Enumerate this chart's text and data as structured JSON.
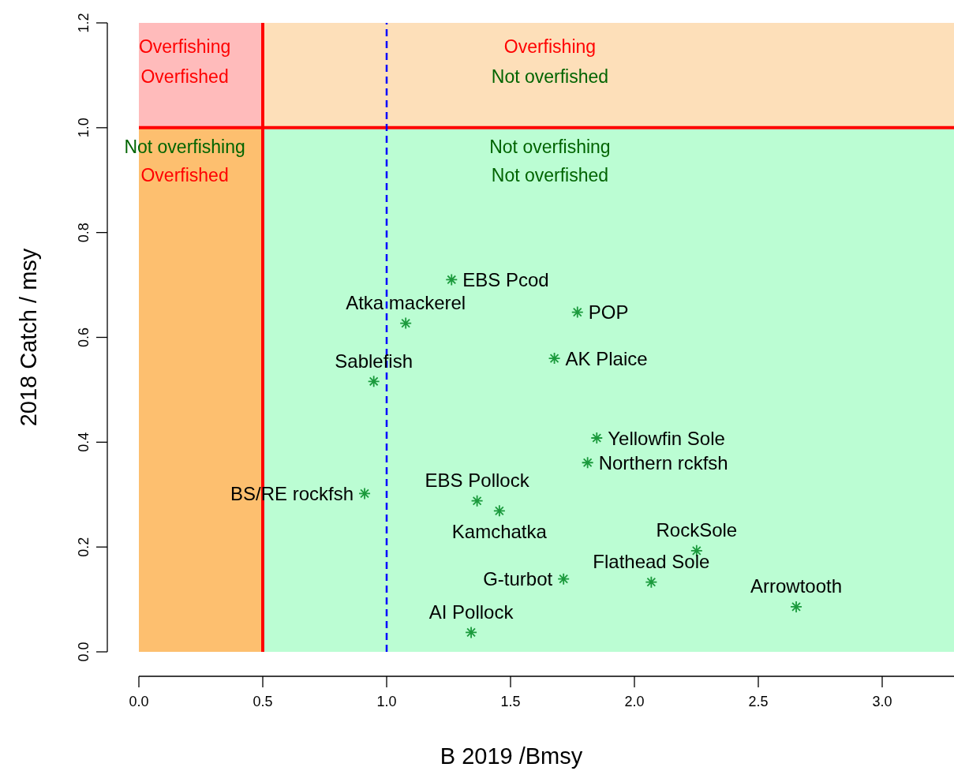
{
  "chart_data": {
    "type": "scatter",
    "xlabel": "B 2019 /Bmsy",
    "ylabel": "2018 Catch / msy",
    "x": [
      1.262,
      1.077,
      0.948,
      1.77,
      1.677,
      1.848,
      1.811,
      0.911,
      1.365,
      1.455,
      2.251,
      2.068,
      1.714,
      1.341,
      2.653
    ],
    "series": [
      {
        "color": "#1a9a3c",
        "values": [
          0.71,
          0.627,
          0.516,
          0.648,
          0.56,
          0.408,
          0.361,
          0.302,
          0.288,
          0.269,
          0.193,
          0.133,
          0.139,
          0.037,
          0.086
        ],
        "value_labels": [
          "EBS Pcod",
          "Atka mackerel",
          "Sablefish",
          "POP",
          "AK Plaice",
          "Yellowfin Sole",
          "Northern rckfsh",
          "BS/RE rockfsh",
          "EBS Pollock",
          "Kamchatka",
          "RockSole",
          "Flathead Sole",
          "G-turbot",
          "AI Pollock",
          "Arrowtooth"
        ]
      }
    ],
    "marker": "cross",
    "xlim": [
      0,
      3.29
    ],
    "xticks": [
      {
        "value": 0,
        "label": "0.0"
      },
      {
        "value": 0.5,
        "label": "0.5"
      },
      {
        "value": 1,
        "label": "1.0"
      },
      {
        "value": 1.5,
        "label": "1.5"
      },
      {
        "value": 2,
        "label": "2.0"
      },
      {
        "value": 2.5,
        "label": "2.5"
      },
      {
        "value": 3,
        "label": "3.0"
      }
    ],
    "ylim": [
      0,
      1.2
    ],
    "yticks": [
      {
        "value": 0,
        "label": "0.0"
      },
      {
        "value": 0.2,
        "label": "0.2"
      },
      {
        "value": 0.4,
        "label": "0.4"
      },
      {
        "value": 0.6,
        "label": "0.6"
      },
      {
        "value": 0.8,
        "label": "0.8"
      },
      {
        "value": 1,
        "label": "1.0"
      },
      {
        "value": 1.2,
        "label": "1.2"
      }
    ],
    "bands": [
      {
        "axis": "x",
        "from": 0,
        "to": 0.5,
        "color": "#fdbf6f"
      },
      {
        "axis": "y",
        "from": 1,
        "to": 1.2,
        "color": "#fddfb9"
      }
    ],
    "ref_lines": [
      {
        "axis": "x",
        "value": 0.5,
        "color": "#ff0000",
        "line_style": "solid"
      },
      {
        "axis": "y",
        "value": 1,
        "color": "#ff0000",
        "line_style": "solid"
      },
      {
        "axis": "x",
        "value": 1,
        "color": "#0000ff",
        "line_style": "dashed"
      }
    ],
    "annotations": [
      "Overfishing",
      "Overfished",
      "Overfishing",
      "Not overfished",
      "Not overfishing",
      "Overfished",
      "Not overfishing",
      "Not overfished"
    ]
  }
}
